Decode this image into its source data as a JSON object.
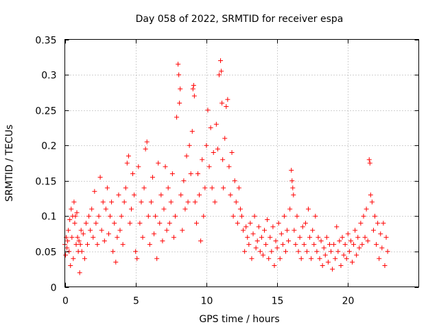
{
  "chart_data": {
    "type": "scatter",
    "title": "Day 058 of 2022, SRMTID for receiver espa",
    "xlabel": "GPS time / hours",
    "ylabel": "SRMTID / TECUs",
    "xlim": [
      0,
      25
    ],
    "ylim": [
      0,
      0.35
    ],
    "x_ticks": [
      0,
      5,
      10,
      15,
      20
    ],
    "x_tick_labels": [
      "0",
      "5",
      "10",
      "15",
      "20"
    ],
    "y_ticks": [
      0,
      0.05,
      0.1,
      0.15,
      0.2,
      0.25,
      0.3,
      0.35
    ],
    "y_tick_labels": [
      "0",
      "0.05",
      "0.1",
      "0.15",
      "0.2",
      "0.25",
      "0.3",
      "0.35"
    ],
    "grid": true,
    "marker": "plus",
    "color": "#ff0000",
    "series": [
      {
        "name": "SRMTID",
        "points": [
          [
            0.0,
            0.06
          ],
          [
            0.05,
            0.045
          ],
          [
            0.1,
            0.07
          ],
          [
            0.15,
            0.055
          ],
          [
            0.2,
            0.065
          ],
          [
            0.25,
            0.08
          ],
          [
            0.3,
            0.05
          ],
          [
            0.35,
            0.095
          ],
          [
            0.4,
            0.03
          ],
          [
            0.45,
            0.11
          ],
          [
            0.5,
            0.07
          ],
          [
            0.55,
            0.1
          ],
          [
            0.6,
            0.04
          ],
          [
            0.65,
            0.12
          ],
          [
            0.7,
            0.09
          ],
          [
            0.75,
            0.1
          ],
          [
            0.8,
            0.06
          ],
          [
            0.85,
            0.105
          ],
          [
            0.9,
            0.07
          ],
          [
            0.95,
            0.05
          ],
          [
            1.0,
            0.065
          ],
          [
            1.05,
            0.02
          ],
          [
            1.1,
            0.06
          ],
          [
            1.15,
            0.08
          ],
          [
            1.2,
            0.05
          ],
          [
            1.3,
            0.075
          ],
          [
            1.4,
            0.04
          ],
          [
            1.5,
            0.09
          ],
          [
            1.6,
            0.06
          ],
          [
            1.7,
            0.1
          ],
          [
            1.8,
            0.08
          ],
          [
            1.9,
            0.11
          ],
          [
            2.0,
            0.07
          ],
          [
            2.1,
            0.135
          ],
          [
            2.2,
            0.09
          ],
          [
            2.3,
            0.06
          ],
          [
            2.4,
            0.1
          ],
          [
            2.5,
            0.155
          ],
          [
            2.6,
            0.08
          ],
          [
            2.7,
            0.12
          ],
          [
            2.8,
            0.065
          ],
          [
            2.9,
            0.11
          ],
          [
            3.0,
            0.14
          ],
          [
            3.1,
            0.075
          ],
          [
            3.2,
            0.1
          ],
          [
            3.3,
            0.12
          ],
          [
            3.4,
            0.05
          ],
          [
            3.5,
            0.09
          ],
          [
            3.6,
            0.035
          ],
          [
            3.7,
            0.07
          ],
          [
            3.8,
            0.13
          ],
          [
            3.9,
            0.08
          ],
          [
            4.0,
            0.1
          ],
          [
            4.1,
            0.06
          ],
          [
            4.2,
            0.12
          ],
          [
            4.3,
            0.14
          ],
          [
            4.4,
            0.175
          ],
          [
            4.5,
            0.185
          ],
          [
            4.6,
            0.09
          ],
          [
            4.7,
            0.11
          ],
          [
            4.8,
            0.16
          ],
          [
            4.9,
            0.13
          ],
          [
            5.0,
            0.05
          ],
          [
            5.1,
            0.04
          ],
          [
            5.2,
            0.17
          ],
          [
            5.3,
            0.09
          ],
          [
            5.4,
            0.12
          ],
          [
            5.5,
            0.07
          ],
          [
            5.6,
            0.14
          ],
          [
            5.7,
            0.195
          ],
          [
            5.8,
            0.205
          ],
          [
            5.9,
            0.1
          ],
          [
            6.0,
            0.06
          ],
          [
            6.1,
            0.12
          ],
          [
            6.2,
            0.155
          ],
          [
            6.3,
            0.075
          ],
          [
            6.4,
            0.1
          ],
          [
            6.5,
            0.04
          ],
          [
            6.6,
            0.175
          ],
          [
            6.7,
            0.09
          ],
          [
            6.8,
            0.13
          ],
          [
            6.9,
            0.065
          ],
          [
            7.0,
            0.11
          ],
          [
            7.1,
            0.17
          ],
          [
            7.2,
            0.08
          ],
          [
            7.3,
            0.14
          ],
          [
            7.4,
            0.09
          ],
          [
            7.5,
            0.12
          ],
          [
            7.6,
            0.16
          ],
          [
            7.7,
            0.07
          ],
          [
            7.8,
            0.1
          ],
          [
            7.9,
            0.24
          ],
          [
            8.0,
            0.315
          ],
          [
            8.05,
            0.3
          ],
          [
            8.1,
            0.26
          ],
          [
            8.15,
            0.28
          ],
          [
            8.2,
            0.13
          ],
          [
            8.3,
            0.08
          ],
          [
            8.4,
            0.15
          ],
          [
            8.5,
            0.11
          ],
          [
            8.6,
            0.185
          ],
          [
            8.7,
            0.12
          ],
          [
            8.8,
            0.2
          ],
          [
            8.9,
            0.16
          ],
          [
            9.0,
            0.22
          ],
          [
            9.05,
            0.28
          ],
          [
            9.1,
            0.285
          ],
          [
            9.15,
            0.27
          ],
          [
            9.2,
            0.12
          ],
          [
            9.3,
            0.09
          ],
          [
            9.4,
            0.16
          ],
          [
            9.5,
            0.13
          ],
          [
            9.6,
            0.065
          ],
          [
            9.7,
            0.18
          ],
          [
            9.8,
            0.1
          ],
          [
            9.9,
            0.14
          ],
          [
            10.0,
            0.2
          ],
          [
            10.1,
            0.25
          ],
          [
            10.2,
            0.17
          ],
          [
            10.3,
            0.225
          ],
          [
            10.4,
            0.14
          ],
          [
            10.5,
            0.19
          ],
          [
            10.6,
            0.12
          ],
          [
            10.7,
            0.23
          ],
          [
            10.8,
            0.195
          ],
          [
            10.9,
            0.3
          ],
          [
            11.0,
            0.32
          ],
          [
            11.05,
            0.305
          ],
          [
            11.1,
            0.26
          ],
          [
            11.15,
            0.18
          ],
          [
            11.2,
            0.14
          ],
          [
            11.3,
            0.21
          ],
          [
            11.4,
            0.255
          ],
          [
            11.5,
            0.265
          ],
          [
            11.6,
            0.17
          ],
          [
            11.7,
            0.13
          ],
          [
            11.8,
            0.19
          ],
          [
            11.9,
            0.1
          ],
          [
            12.0,
            0.15
          ],
          [
            12.1,
            0.12
          ],
          [
            12.2,
            0.09
          ],
          [
            12.3,
            0.14
          ],
          [
            12.4,
            0.11
          ],
          [
            12.5,
            0.1
          ],
          [
            12.6,
            0.08
          ],
          [
            12.7,
            0.05
          ],
          [
            12.8,
            0.085
          ],
          [
            12.9,
            0.07
          ],
          [
            13.0,
            0.06
          ],
          [
            13.1,
            0.09
          ],
          [
            13.2,
            0.04
          ],
          [
            13.3,
            0.075
          ],
          [
            13.4,
            0.1
          ],
          [
            13.5,
            0.055
          ],
          [
            13.6,
            0.065
          ],
          [
            13.7,
            0.085
          ],
          [
            13.8,
            0.05
          ],
          [
            13.9,
            0.07
          ],
          [
            14.0,
            0.045
          ],
          [
            14.1,
            0.08
          ],
          [
            14.2,
            0.06
          ],
          [
            14.3,
            0.095
          ],
          [
            14.4,
            0.04
          ],
          [
            14.5,
            0.07
          ],
          [
            14.6,
            0.05
          ],
          [
            14.7,
            0.085
          ],
          [
            14.8,
            0.03
          ],
          [
            14.9,
            0.065
          ],
          [
            15.0,
            0.055
          ],
          [
            15.1,
            0.09
          ],
          [
            15.2,
            0.04
          ],
          [
            15.3,
            0.075
          ],
          [
            15.4,
            0.06
          ],
          [
            15.5,
            0.1
          ],
          [
            15.6,
            0.05
          ],
          [
            15.7,
            0.08
          ],
          [
            15.8,
            0.065
          ],
          [
            15.9,
            0.11
          ],
          [
            16.0,
            0.165
          ],
          [
            16.05,
            0.15
          ],
          [
            16.1,
            0.14
          ],
          [
            16.15,
            0.13
          ],
          [
            16.2,
            0.08
          ],
          [
            16.3,
            0.06
          ],
          [
            16.4,
            0.1
          ],
          [
            16.5,
            0.05
          ],
          [
            16.6,
            0.07
          ],
          [
            16.7,
            0.04
          ],
          [
            16.8,
            0.085
          ],
          [
            16.9,
            0.06
          ],
          [
            17.0,
            0.09
          ],
          [
            17.1,
            0.05
          ],
          [
            17.2,
            0.11
          ],
          [
            17.3,
            0.07
          ],
          [
            17.4,
            0.04
          ],
          [
            17.5,
            0.08
          ],
          [
            17.6,
            0.06
          ],
          [
            17.7,
            0.1
          ],
          [
            17.8,
            0.05
          ],
          [
            17.9,
            0.07
          ],
          [
            18.0,
            0.04
          ],
          [
            18.1,
            0.065
          ],
          [
            18.2,
            0.03
          ],
          [
            18.3,
            0.055
          ],
          [
            18.4,
            0.045
          ],
          [
            18.5,
            0.07
          ],
          [
            18.6,
            0.035
          ],
          [
            18.7,
            0.06
          ],
          [
            18.8,
            0.05
          ],
          [
            18.9,
            0.025
          ],
          [
            19.0,
            0.06
          ],
          [
            19.1,
            0.04
          ],
          [
            19.2,
            0.085
          ],
          [
            19.3,
            0.05
          ],
          [
            19.4,
            0.065
          ],
          [
            19.5,
            0.03
          ],
          [
            19.6,
            0.07
          ],
          [
            19.7,
            0.045
          ],
          [
            19.8,
            0.06
          ],
          [
            19.9,
            0.04
          ],
          [
            20.0,
            0.075
          ],
          [
            20.1,
            0.05
          ],
          [
            20.2,
            0.065
          ],
          [
            20.3,
            0.035
          ],
          [
            20.4,
            0.06
          ],
          [
            20.5,
            0.08
          ],
          [
            20.6,
            0.045
          ],
          [
            20.7,
            0.07
          ],
          [
            20.8,
            0.055
          ],
          [
            20.9,
            0.09
          ],
          [
            21.0,
            0.06
          ],
          [
            21.1,
            0.1
          ],
          [
            21.2,
            0.07
          ],
          [
            21.3,
            0.11
          ],
          [
            21.4,
            0.065
          ],
          [
            21.5,
            0.18
          ],
          [
            21.55,
            0.175
          ],
          [
            21.6,
            0.13
          ],
          [
            21.7,
            0.12
          ],
          [
            21.8,
            0.08
          ],
          [
            21.9,
            0.1
          ],
          [
            22.0,
            0.06
          ],
          [
            22.1,
            0.09
          ],
          [
            22.2,
            0.04
          ],
          [
            22.3,
            0.075
          ],
          [
            22.4,
            0.055
          ],
          [
            22.5,
            0.09
          ],
          [
            22.6,
            0.03
          ],
          [
            22.7,
            0.07
          ],
          [
            22.8,
            0.05
          ]
        ]
      }
    ]
  }
}
